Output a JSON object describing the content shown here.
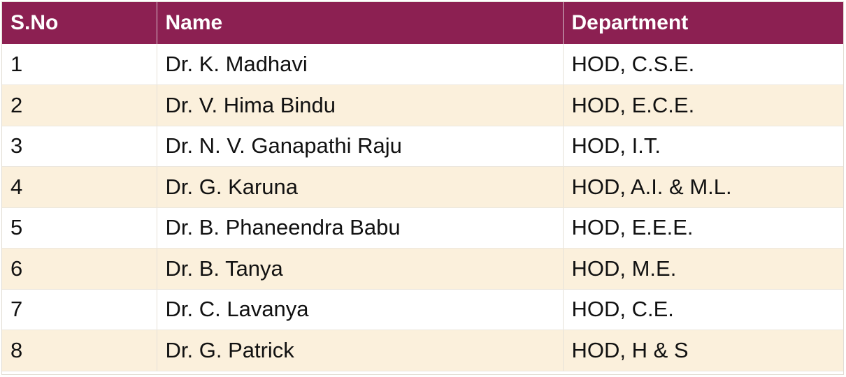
{
  "table": {
    "headers": [
      "S.No",
      "Name",
      "Department"
    ],
    "rows": [
      {
        "sno": "1",
        "name": "Dr. K. Madhavi",
        "department": "HOD, C.S.E."
      },
      {
        "sno": "2",
        "name": "Dr. V. Hima Bindu",
        "department": "HOD, E.C.E."
      },
      {
        "sno": "3",
        "name": "Dr. N. V. Ganapathi Raju",
        "department": "HOD, I.T."
      },
      {
        "sno": "4",
        "name": "Dr. G. Karuna",
        "department": "HOD, A.I. & M.L."
      },
      {
        "sno": "5",
        "name": "Dr. B. Phaneendra Babu",
        "department": "HOD, E.E.E."
      },
      {
        "sno": "6",
        "name": "Dr. B. Tanya",
        "department": "HOD, M.E."
      },
      {
        "sno": "7",
        "name": "Dr. C. Lavanya",
        "department": "HOD, C.E."
      },
      {
        "sno": "8",
        "name": "Dr. G. Patrick",
        "department": "HOD, H & S"
      }
    ]
  },
  "colors": {
    "header_bg": "#8c2052",
    "header_text": "#ffffff",
    "row_alt_bg": "#fbf0dc",
    "row_bg": "#ffffff"
  }
}
